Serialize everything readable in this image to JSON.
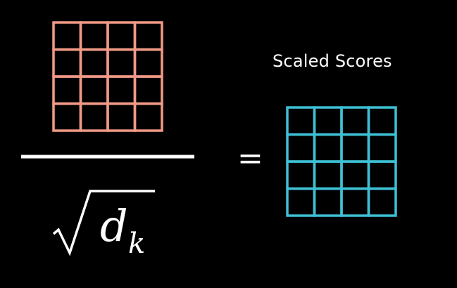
{
  "diagram": {
    "right_label": "Scaled Scores",
    "operator": "=",
    "denominator": {
      "radical": "√",
      "variable": "d",
      "subscript": "k"
    },
    "numerator_matrix": {
      "rows": 4,
      "cols": 4,
      "color": "#f19a86"
    },
    "result_matrix": {
      "rows": 4,
      "cols": 4,
      "color": "#3ec0d4"
    },
    "line_color": "#ffffff",
    "background": "#000000"
  }
}
